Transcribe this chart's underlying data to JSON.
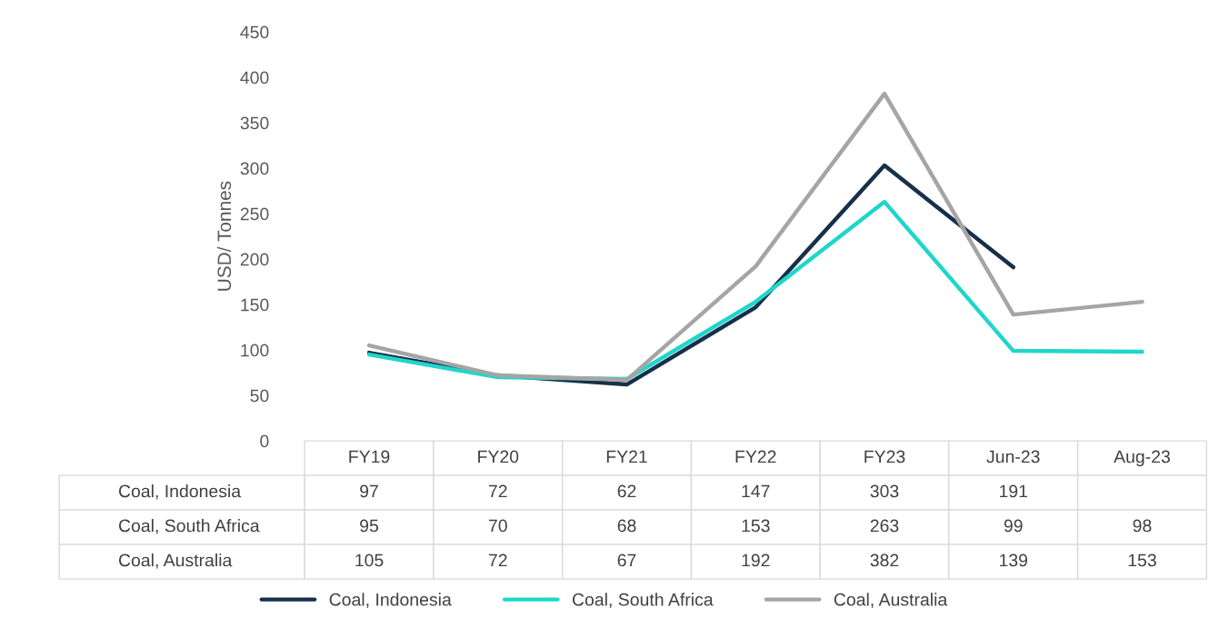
{
  "chart_data": {
    "type": "line",
    "ylabel": "USD/ Tonnes",
    "categories": [
      "FY19",
      "FY20",
      "FY21",
      "FY22",
      "FY23",
      "Jun-23",
      "Aug-23"
    ],
    "series": [
      {
        "name": "Coal, Indonesia",
        "color": "#17304a",
        "values": [
          97,
          72,
          62,
          147,
          303,
          191,
          null
        ]
      },
      {
        "name": "Coal, South Africa",
        "color": "#1fd6cb",
        "values": [
          95,
          70,
          68,
          153,
          263,
          99,
          98
        ]
      },
      {
        "name": "Coal, Australia",
        "color": "#a5a5a5",
        "values": [
          105,
          72,
          67,
          192,
          382,
          139,
          153
        ]
      }
    ],
    "ylim": [
      0,
      450
    ],
    "yticks": [
      0,
      50,
      100,
      150,
      200,
      250,
      300,
      350,
      400,
      450
    ],
    "data_labels": true,
    "legend": "bottom",
    "grid": false,
    "marker": "none",
    "line_style": "solid"
  }
}
